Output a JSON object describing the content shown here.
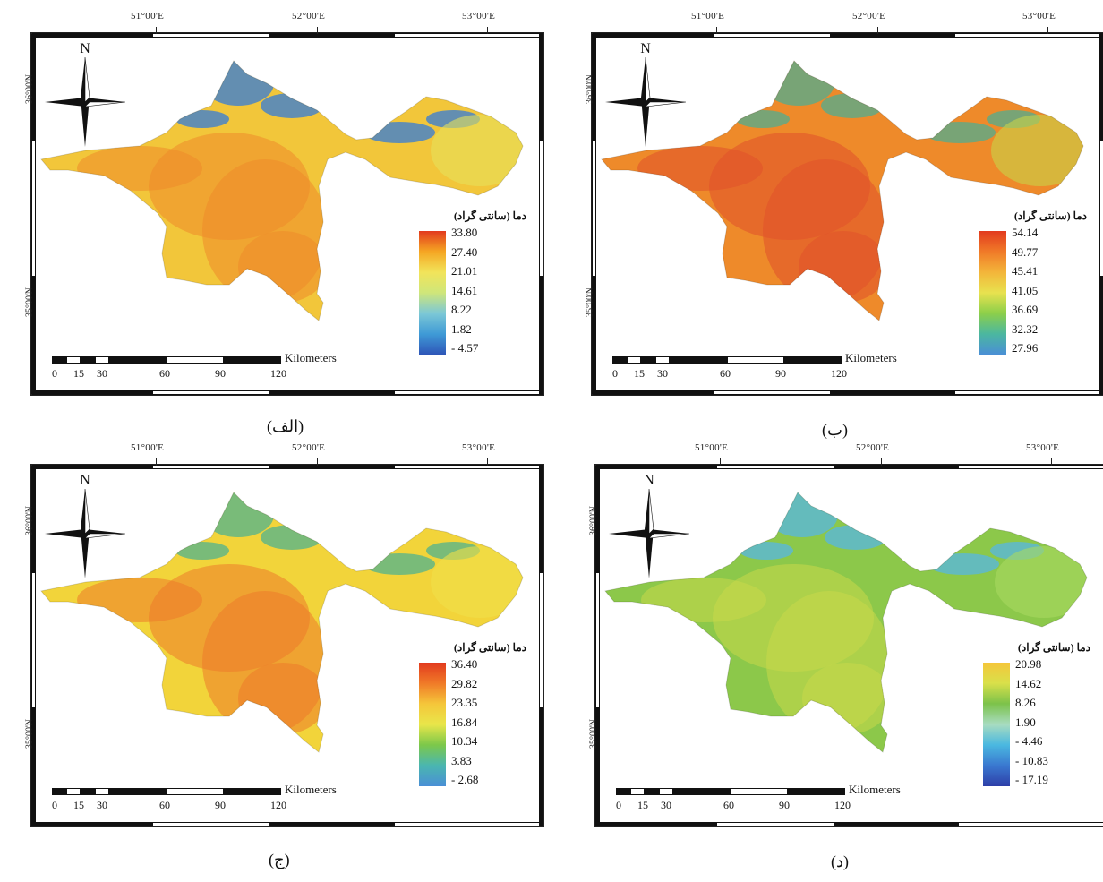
{
  "panels": [
    {
      "id": "alef",
      "caption": "(الف)",
      "lon_labels": [
        "51°00'E",
        "52°00'E",
        "53°00'E"
      ],
      "lat_labels": [
        "36°00'N",
        "35°00'N"
      ],
      "north": "N",
      "legend_title": "دما (سانتی گراد)",
      "legend_values": [
        "33.80",
        "27.40",
        "21.01",
        "14.61",
        "8.22",
        "1.82",
        "- 4.57"
      ],
      "legend_colors": [
        "#e23a1e",
        "#f5a623",
        "#f2e45a",
        "#cfe67a",
        "#7cc8d6",
        "#3f9ad6",
        "#2e55b8"
      ],
      "scale_unit": "Kilometers",
      "scale_ticks": [
        "0",
        "15",
        "30",
        "60",
        "90",
        "120"
      ],
      "map_palette": {
        "base": "#f2c63a",
        "warm": "#ee8a2a",
        "cool": "#3f7fcf",
        "edge": "#e6e15a"
      }
    },
    {
      "id": "be",
      "caption": "(ب)",
      "lon_labels": [
        "51°00'E",
        "52°00'E",
        "53°00'E"
      ],
      "lat_labels": [
        "36°00'N",
        "35°00'N"
      ],
      "north": "N",
      "legend_title": "دما (سانتی گراد)",
      "legend_values": [
        "54.14",
        "49.77",
        "45.41",
        "41.05",
        "36.69",
        "32.32",
        "27.96"
      ],
      "legend_colors": [
        "#e23a1e",
        "#f07a28",
        "#f3b53a",
        "#e8e24f",
        "#8ccf4a",
        "#4bb7a0",
        "#4a8fd6"
      ],
      "scale_unit": "Kilometers",
      "scale_ticks": [
        "0",
        "15",
        "30",
        "60",
        "90",
        "120"
      ],
      "map_palette": {
        "base": "#ee8a2a",
        "warm": "#e0502a",
        "cool": "#5aaa8a",
        "edge": "#c8d44a"
      }
    },
    {
      "id": "jim",
      "caption": "(ج)",
      "lon_labels": [
        "51°00'E",
        "52°00'E",
        "53°00'E"
      ],
      "lat_labels": [
        "36°00'N",
        "35°00'N"
      ],
      "north": "N",
      "legend_title": "دما (سانتی گراد)",
      "legend_values": [
        "36.40",
        "29.82",
        "23.35",
        "16.84",
        "10.34",
        "3.83",
        "- 2.68"
      ],
      "legend_colors": [
        "#e23a1e",
        "#f07a28",
        "#f5c63a",
        "#e9e64a",
        "#7cc84a",
        "#4ab6b0",
        "#4a8fd6"
      ],
      "scale_unit": "Kilometers",
      "scale_ticks": [
        "0",
        "15",
        "30",
        "60",
        "90",
        "120"
      ],
      "map_palette": {
        "base": "#f2d43a",
        "warm": "#ec7a2a",
        "cool": "#5ab48a",
        "edge": "#f0e04a"
      }
    },
    {
      "id": "dal",
      "caption": "(د)",
      "lon_labels": [
        "51°00'E",
        "52°00'E",
        "53°00'E"
      ],
      "lat_labels": [
        "36°00'N",
        "35°00'N"
      ],
      "north": "N",
      "legend_title": "دما (سانتی گراد)",
      "legend_values": [
        "20.98",
        "14.62",
        "8.26",
        "1.90",
        "- 4.46",
        "- 10.83",
        "- 17.19"
      ],
      "legend_colors": [
        "#f5c63a",
        "#d9e04a",
        "#7cc24a",
        "#a8dcc0",
        "#4ab8e0",
        "#3a78d0",
        "#2e3fa8"
      ],
      "scale_unit": "Kilometers",
      "scale_ticks": [
        "0",
        "15",
        "30",
        "60",
        "90",
        "120"
      ],
      "map_palette": {
        "base": "#8cc84a",
        "warm": "#c8d84a",
        "cool": "#5ab8d8",
        "edge": "#a8d860"
      }
    }
  ]
}
